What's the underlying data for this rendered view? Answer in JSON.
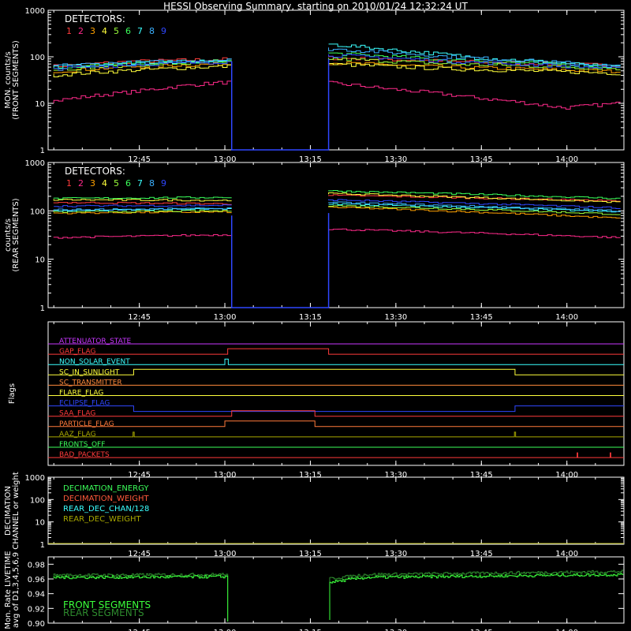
{
  "title": "HESSI Observing Summary, starting on 2010/01/24 12:32:24 UT",
  "time_ticks": [
    "12:45",
    "13:00",
    "13:15",
    "13:30",
    "13:45",
    "14:00"
  ],
  "time_tick_minutes": [
    15,
    30,
    45,
    60,
    75,
    90
  ],
  "time_range_minutes": [
    -1,
    100
  ],
  "detector_colors": [
    "#ff3b3b",
    "#ff2a8a",
    "#ffa100",
    "#ffff3b",
    "#9bff3b",
    "#3bff5a",
    "#3bffff",
    "#3bb0ff",
    "#2f47ff"
  ],
  "chart_data": [
    {
      "type": "line",
      "ylabel": "MON. counts/s\n(FRONT SEGMENTS)",
      "scale": "log",
      "ylim": [
        1,
        1000
      ],
      "yticks": [
        "1",
        "10",
        "100",
        "1000"
      ],
      "legend_title": "DETECTORS:",
      "legend_entries": [
        "1",
        "2",
        "3",
        "4",
        "5",
        "6",
        "7",
        "8",
        "9"
      ],
      "gap_minutes": [
        31.2,
        48.2
      ],
      "series": [
        {
          "name": "1",
          "before": [
            [
              0,
              62
            ],
            [
              15,
              80
            ],
            [
              30,
              88
            ]
          ],
          "after": [
            [
              48,
              95
            ],
            [
              70,
              80
            ],
            [
              100,
              65
            ]
          ]
        },
        {
          "name": "2",
          "before": [
            [
              0,
              11
            ],
            [
              15,
              18
            ],
            [
              25,
              25
            ],
            [
              30,
              28
            ]
          ],
          "after": [
            [
              48,
              28
            ],
            [
              60,
              20
            ],
            [
              75,
              13
            ],
            [
              90,
              8
            ],
            [
              100,
              10
            ]
          ]
        },
        {
          "name": "3",
          "before": [
            [
              0,
              48
            ],
            [
              15,
              62
            ],
            [
              30,
              70
            ]
          ],
          "after": [
            [
              48,
              75
            ],
            [
              70,
              60
            ],
            [
              100,
              48
            ]
          ]
        },
        {
          "name": "4",
          "before": [
            [
              0,
              40
            ],
            [
              15,
              52
            ],
            [
              30,
              62
            ]
          ],
          "after": [
            [
              48,
              70
            ],
            [
              70,
              55
            ],
            [
              100,
              44
            ]
          ]
        },
        {
          "name": "5",
          "before": [
            [
              0,
              52
            ],
            [
              15,
              68
            ],
            [
              30,
              75
            ]
          ],
          "after": [
            [
              48,
              92
            ],
            [
              70,
              70
            ],
            [
              100,
              56
            ]
          ]
        },
        {
          "name": "6",
          "before": [
            [
              0,
              58
            ],
            [
              15,
              72
            ],
            [
              30,
              80
            ]
          ],
          "after": [
            [
              48,
              120
            ],
            [
              70,
              85
            ],
            [
              100,
              60
            ]
          ]
        },
        {
          "name": "7",
          "before": [
            [
              0,
              60
            ],
            [
              15,
              72
            ],
            [
              30,
              82
            ]
          ],
          "after": [
            [
              48,
              190
            ],
            [
              60,
              140
            ],
            [
              75,
              95
            ],
            [
              100,
              58
            ]
          ]
        },
        {
          "name": "8",
          "before": [
            [
              0,
              64
            ],
            [
              15,
              76
            ],
            [
              30,
              85
            ]
          ],
          "after": [
            [
              48,
              150
            ],
            [
              70,
              100
            ],
            [
              100,
              62
            ]
          ]
        },
        {
          "name": "9",
          "before": [
            [
              0,
              55
            ],
            [
              15,
              68
            ],
            [
              30,
              78
            ]
          ],
          "after": [
            [
              48,
              110
            ],
            [
              70,
              80
            ],
            [
              100,
              55
            ]
          ]
        }
      ]
    },
    {
      "type": "line",
      "ylabel": "counts/s\n(REAR SEGMENTS)",
      "scale": "log",
      "ylim": [
        1,
        1000
      ],
      "yticks": [
        "1",
        "10",
        "100",
        "1000"
      ],
      "legend_title": "DETECTORS:",
      "legend_entries": [
        "1",
        "2",
        "3",
        "4",
        "5",
        "6",
        "7",
        "8",
        "9"
      ],
      "gap_minutes": [
        31.2,
        48.2
      ],
      "series": [
        {
          "name": "1",
          "before": [
            [
              0,
              150
            ],
            [
              30,
              140
            ]
          ],
          "after": [
            [
              48,
              210
            ],
            [
              100,
              160
            ]
          ]
        },
        {
          "name": "2",
          "before": [
            [
              0,
              28
            ],
            [
              30,
              32
            ]
          ],
          "after": [
            [
              48,
              42
            ],
            [
              100,
              28
            ]
          ]
        },
        {
          "name": "3",
          "before": [
            [
              0,
              90
            ],
            [
              30,
              95
            ]
          ],
          "after": [
            [
              48,
              120
            ],
            [
              100,
              70
            ]
          ]
        },
        {
          "name": "4",
          "before": [
            [
              0,
              170
            ],
            [
              30,
              165
            ]
          ],
          "after": [
            [
              48,
              230
            ],
            [
              100,
              150
            ]
          ]
        },
        {
          "name": "5",
          "before": [
            [
              0,
              95
            ],
            [
              30,
              100
            ]
          ],
          "after": [
            [
              48,
              130
            ],
            [
              100,
              85
            ]
          ]
        },
        {
          "name": "6",
          "before": [
            [
              0,
              180
            ],
            [
              30,
              190
            ]
          ],
          "after": [
            [
              48,
              260
            ],
            [
              100,
              180
            ]
          ]
        },
        {
          "name": "7",
          "before": [
            [
              0,
              100
            ],
            [
              30,
              110
            ]
          ],
          "after": [
            [
              48,
              140
            ],
            [
              100,
              95
            ]
          ]
        },
        {
          "name": "8",
          "before": [
            [
              0,
              105
            ],
            [
              30,
              112
            ]
          ],
          "after": [
            [
              48,
              150
            ],
            [
              100,
              100
            ]
          ]
        },
        {
          "name": "9",
          "before": [
            [
              0,
              125
            ],
            [
              30,
              130
            ]
          ],
          "after": [
            [
              48,
              170
            ],
            [
              100,
              115
            ]
          ]
        }
      ]
    },
    {
      "type": "line",
      "ylabel": "Flags",
      "flags": [
        {
          "name": "ATTENUATOR_STATE",
          "color": "#c838ff",
          "segments": []
        },
        {
          "name": "GAP_FLAG",
          "color": "#ff3b3b",
          "segments": [
            [
              30.5,
              48.2
            ]
          ]
        },
        {
          "name": "NON_SOLAR_EVENT",
          "color": "#3bffff",
          "segments": [
            [
              30.0,
              30.6
            ]
          ]
        },
        {
          "name": "SC_IN_SUNLIGHT",
          "color": "#ffff3b",
          "segments": [
            [
              14.0,
              80.9
            ]
          ]
        },
        {
          "name": "SC_TRANSMITTER",
          "color": "#ff8a3b",
          "segments": []
        },
        {
          "name": "FLARE_FLAG",
          "color": "#ffff3b",
          "segments": []
        },
        {
          "name": "ECLIPSE_FLAG",
          "color": "#2f47ff",
          "segments": [
            [
              -1,
              14.0
            ],
            [
              80.9,
              100
            ]
          ]
        },
        {
          "name": "SAA_FLAG",
          "color": "#ff3b3b",
          "segments": [
            [
              31.2,
              45.8
            ]
          ]
        },
        {
          "name": "PARTICLE_FLAG",
          "color": "#ff7a3b",
          "segments": [
            [
              30.0,
              45.8
            ]
          ]
        },
        {
          "name": "AAZ_FLAG",
          "color": "#a8a800",
          "segments": [
            [
              13.9,
              14.1
            ],
            [
              80.8,
              81.0
            ]
          ]
        },
        {
          "name": "FRONTS_OFF",
          "color": "#3bff5a",
          "segments": []
        },
        {
          "name": "BAD_PACKETS",
          "color": "#ff3b3b",
          "segments": [
            [
              91.8,
              91.9
            ],
            [
              97.6,
              97.7
            ]
          ]
        }
      ]
    },
    {
      "type": "line",
      "ylabel": "DECIMATION\nCHANNEL or weight",
      "scale": "log",
      "ylim": [
        1,
        1000
      ],
      "yticks": [
        "1",
        "10",
        "100",
        "1000"
      ],
      "legend_entries": [
        {
          "name": "DECIMATION_ENERGY",
          "color": "#3bff5a"
        },
        {
          "name": "DECIMATION_WEIGHT",
          "color": "#ff5a3b"
        },
        {
          "name": "REAR_DEC_CHAN/128",
          "color": "#3bffff"
        },
        {
          "name": "REAR_DEC_WEIGHT",
          "color": "#a8a800"
        }
      ]
    },
    {
      "type": "line",
      "ylabel": "Mon. Rate LIVETIME\navg of D1,3,4,5,6,9",
      "scale": "linear",
      "ylim": [
        0.9,
        0.99
      ],
      "yticks": [
        "0.90",
        "0.92",
        "0.94",
        "0.96",
        "0.98"
      ],
      "yvals": [
        0.9,
        0.92,
        0.94,
        0.96,
        0.98
      ],
      "legend_entries": [
        {
          "name": "FRONT SEGMENTS",
          "color": "#3bff3b"
        },
        {
          "name": "REAR SEGMENTS",
          "color": "#2e8b2e"
        }
      ],
      "gap_minutes": [
        31.2,
        48.2
      ],
      "series": [
        {
          "name": "FRONT SEGMENTS",
          "before": [
            [
              0,
              0.962
            ],
            [
              30,
              0.963
            ]
          ],
          "after": [
            [
              48,
              0.955
            ],
            [
              55,
              0.962
            ],
            [
              100,
              0.966
            ]
          ]
        },
        {
          "name": "REAR SEGMENTS",
          "before": [
            [
              0,
              0.965
            ],
            [
              30,
              0.966
            ]
          ],
          "after": [
            [
              48,
              0.96
            ],
            [
              55,
              0.966
            ],
            [
              100,
              0.97
            ]
          ]
        }
      ]
    }
  ]
}
